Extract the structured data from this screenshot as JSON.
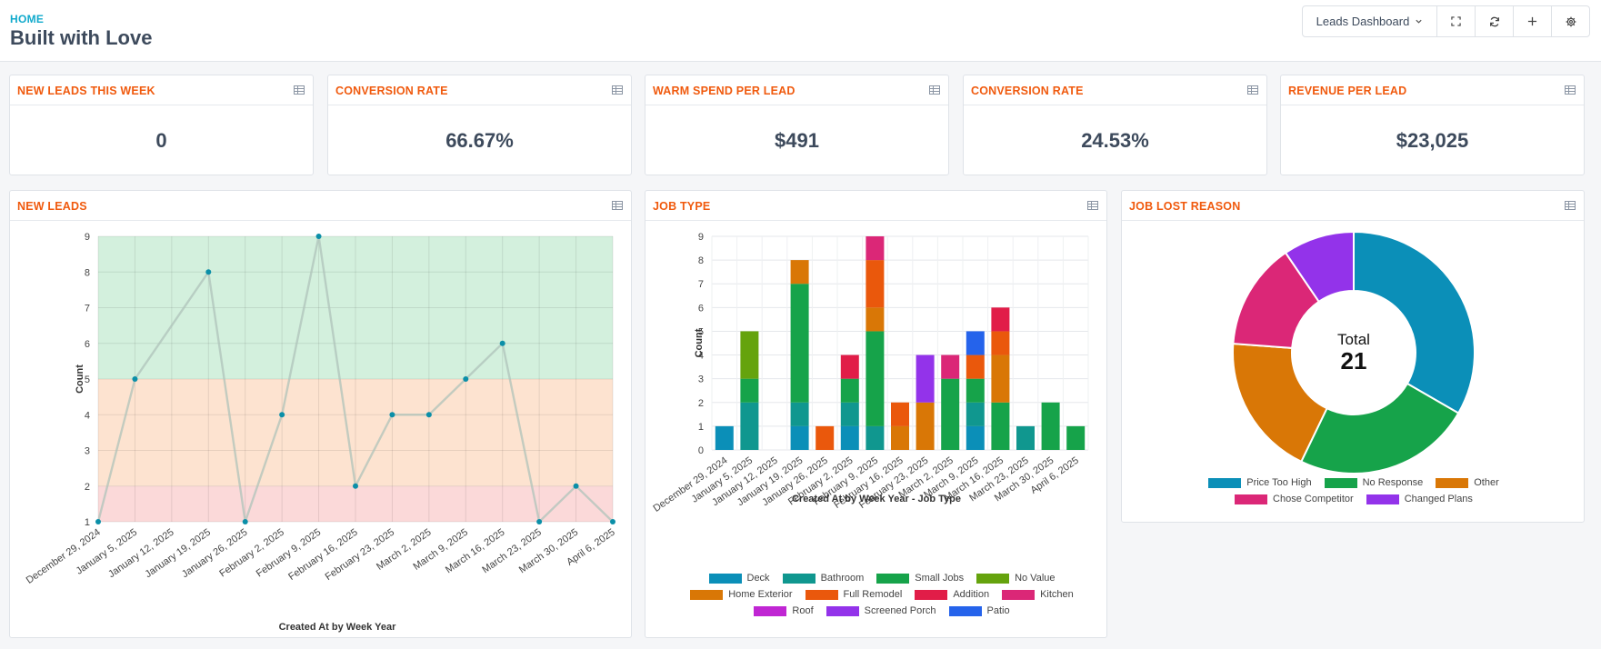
{
  "header": {
    "breadcrumb": "HOME",
    "title": "Built with Love",
    "dashboard_select": "Leads Dashboard",
    "icons": [
      "expand-icon",
      "refresh-icon",
      "plus-icon",
      "gear-icon"
    ]
  },
  "kpis": [
    {
      "title": "NEW LEADS THIS WEEK",
      "value": "0"
    },
    {
      "title": "CONVERSION RATE",
      "value": "66.67%"
    },
    {
      "title": "WARM SPEND PER LEAD",
      "value": "$491"
    },
    {
      "title": "CONVERSION RATE",
      "value": "24.53%"
    },
    {
      "title": "REVENUE PER LEAD",
      "value": "$23,025"
    }
  ],
  "panels": {
    "new_leads": {
      "title": "NEW LEADS"
    },
    "job_type": {
      "title": "JOB TYPE"
    },
    "job_lost": {
      "title": "JOB LOST REASON"
    }
  },
  "colors": {
    "accent_orange": "#f05a0e",
    "breadcrumb": "#11aacc",
    "point": "#0b8fa8",
    "band_green": "#d3f0dd",
    "band_orange": "#fde3d0",
    "band_red": "#fbd9d9"
  },
  "chart_data": [
    {
      "type": "line",
      "title": "NEW LEADS",
      "xlabel": "Created At by Week Year",
      "ylabel": "Count",
      "ylim": [
        1,
        9
      ],
      "yticks": [
        1,
        2,
        3,
        4,
        5,
        6,
        7,
        8,
        9
      ],
      "bands": [
        {
          "from": 1,
          "to": 2,
          "color": "#fbd9d9"
        },
        {
          "from": 2,
          "to": 5,
          "color": "#fde3d0"
        },
        {
          "from": 5,
          "to": 9,
          "color": "#d3f0dd"
        }
      ],
      "categories": [
        "December 29, 2024",
        "January 5, 2025",
        "January 12, 2025",
        "January 19, 2025",
        "January 26, 2025",
        "February 2, 2025",
        "February 9, 2025",
        "February 16, 2025",
        "February 23, 2025",
        "March 2, 2025",
        "March 9, 2025",
        "March 16, 2025",
        "March 23, 2025",
        "March 30, 2025",
        "April 6, 2025"
      ],
      "series": [
        {
          "name": "New Leads",
          "points": [
            {
              "x": 0,
              "y": 1
            },
            {
              "x": 1,
              "y": 5
            },
            {
              "x": 3,
              "y": 8
            },
            {
              "x": 4,
              "y": 1
            },
            {
              "x": 5,
              "y": 4
            },
            {
              "x": 6,
              "y": 9
            },
            {
              "x": 7,
              "y": 2
            },
            {
              "x": 8,
              "y": 4
            },
            {
              "x": 9,
              "y": 4
            },
            {
              "x": 10,
              "y": 5
            },
            {
              "x": 11,
              "y": 6
            },
            {
              "x": 12,
              "y": 1
            },
            {
              "x": 13,
              "y": 2
            },
            {
              "x": 14,
              "y": 1
            }
          ]
        }
      ]
    },
    {
      "type": "bar",
      "stacked": true,
      "title": "JOB TYPE",
      "xlabel": "Created At by Week Year - Job Type",
      "ylabel": "Count",
      "ylim": [
        0,
        9
      ],
      "yticks": [
        0,
        1,
        2,
        3,
        4,
        5,
        6,
        7,
        8,
        9
      ],
      "categories": [
        "December 29, 2024",
        "January 5, 2025",
        "January 12, 2025",
        "January 19, 2025",
        "January 26, 2025",
        "February 2, 2025",
        "February 9, 2025",
        "February 16, 2025",
        "February 23, 2025",
        "March 2, 2025",
        "March 9, 2025",
        "March 16, 2025",
        "March 23, 2025",
        "March 30, 2025",
        "April 6, 2025"
      ],
      "series": [
        {
          "name": "Deck",
          "color": "#0b8fb8",
          "values": [
            1,
            0,
            0,
            1,
            0,
            1,
            0,
            0,
            0,
            0,
            1,
            0,
            0,
            0,
            0
          ]
        },
        {
          "name": "Bathroom",
          "color": "#10978f",
          "values": [
            0,
            2,
            0,
            1,
            0,
            1,
            1,
            0,
            0,
            0,
            1,
            0,
            1,
            0,
            0
          ]
        },
        {
          "name": "Small Jobs",
          "color": "#16a34a",
          "values": [
            0,
            1,
            0,
            5,
            0,
            1,
            4,
            0,
            0,
            3,
            1,
            2,
            0,
            2,
            1
          ]
        },
        {
          "name": "No Value",
          "color": "#65a30d",
          "values": [
            0,
            2,
            0,
            0,
            0,
            0,
            0,
            0,
            0,
            0,
            0,
            0,
            0,
            0,
            0
          ]
        },
        {
          "name": "Home Exterior",
          "color": "#d97706",
          "values": [
            0,
            0,
            0,
            1,
            0,
            0,
            1,
            1,
            2,
            0,
            0,
            2,
            0,
            0,
            0
          ]
        },
        {
          "name": "Full Remodel",
          "color": "#ea580c",
          "values": [
            0,
            0,
            0,
            0,
            1,
            0,
            2,
            1,
            0,
            0,
            1,
            1,
            0,
            0,
            0
          ]
        },
        {
          "name": "Addition",
          "color": "#e11d48",
          "values": [
            0,
            0,
            0,
            0,
            0,
            1,
            0,
            0,
            0,
            0,
            0,
            1,
            0,
            0,
            0
          ]
        },
        {
          "name": "Kitchen",
          "color": "#db2777",
          "values": [
            0,
            0,
            0,
            0,
            0,
            0,
            1,
            0,
            0,
            1,
            0,
            0,
            0,
            0,
            0
          ]
        },
        {
          "name": "Roof",
          "color": "#c026d3",
          "values": [
            0,
            0,
            0,
            0,
            0,
            0,
            0,
            0,
            0,
            0,
            0,
            0,
            0,
            0,
            0
          ]
        },
        {
          "name": "Screened Porch",
          "color": "#9333ea",
          "values": [
            0,
            0,
            0,
            0,
            0,
            0,
            0,
            0,
            2,
            0,
            0,
            0,
            0,
            0,
            0
          ]
        },
        {
          "name": "Patio",
          "color": "#2563eb",
          "values": [
            0,
            0,
            0,
            0,
            0,
            0,
            0,
            0,
            0,
            0,
            1,
            0,
            0,
            0,
            0
          ]
        }
      ]
    },
    {
      "type": "pie",
      "donut": true,
      "title": "JOB LOST REASON",
      "center_label": "Total",
      "center_value": "21",
      "slices": [
        {
          "label": "Price Too High",
          "value": 7,
          "color": "#0b8fb8"
        },
        {
          "label": "No Response",
          "value": 5,
          "color": "#16a34a"
        },
        {
          "label": "Other",
          "value": 4,
          "color": "#d97706"
        },
        {
          "label": "Chose Competitor",
          "value": 3,
          "color": "#db2777"
        },
        {
          "label": "Changed Plans",
          "value": 2,
          "color": "#9333ea"
        }
      ]
    }
  ]
}
